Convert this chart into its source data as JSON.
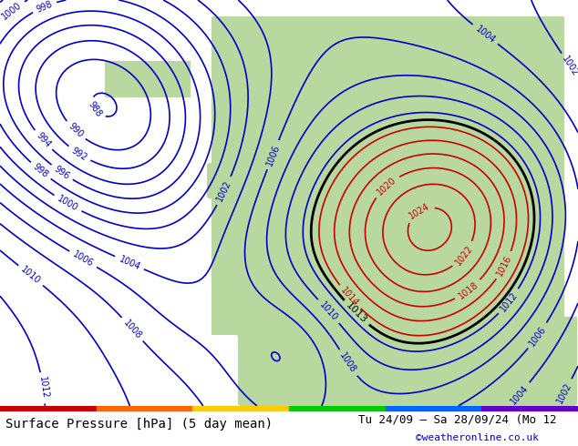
{
  "title_left": "Surface Pressure [hPa] (5 day mean)",
  "title_right": "Tu 24/09 – Sa 28/09/24 (Mo 12",
  "copyright": "©weatheronline.co.uk",
  "bg_color": "#d0e8f0",
  "land_color": "#b8d8a0",
  "border_color": "#888888",
  "contour_blue_color": "#0000cc",
  "contour_red_color": "#cc0000",
  "contour_black_color": "#000000",
  "footer_bg": "#ffffff",
  "footer_text_color": "#000000",
  "copyright_color": "#0000cc",
  "figsize": [
    6.34,
    4.9
  ],
  "dpi": 100
}
